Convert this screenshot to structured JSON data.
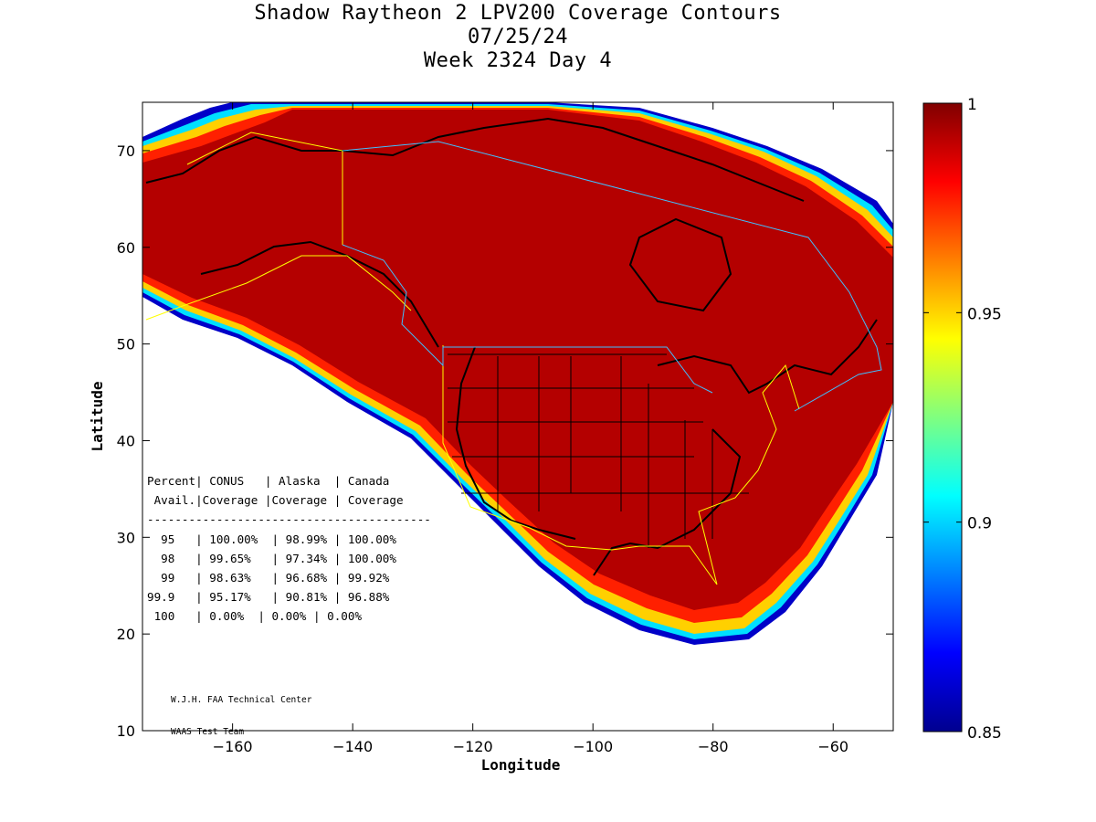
{
  "titles": [
    "Shadow Raytheon 2 LPV200 Coverage Contours",
    "07/25/24",
    "Week 2324 Day 4"
  ],
  "chart_data": {
    "type": "heatmap",
    "title": "Shadow Raytheon 2 LPV200 Coverage Contours",
    "xlabel": "Longitude",
    "ylabel": "Latitude",
    "xlim": [
      -175,
      -50
    ],
    "ylim": [
      10,
      75
    ],
    "xticks": [
      -160,
      -140,
      -120,
      -100,
      -80,
      -60
    ],
    "yticks": [
      10,
      20,
      30,
      40,
      50,
      60,
      70
    ],
    "colorbar": {
      "min": 0.85,
      "max": 1,
      "ticks": [
        "0.85",
        "0.9",
        "0.95",
        "1"
      ],
      "colormap": "jet"
    },
    "coverage_table": {
      "header1": [
        "Percent",
        "CONUS",
        "Alaska",
        "Canada"
      ],
      "header2": [
        "Avail.",
        "Coverage",
        "Coverage",
        "Coverage"
      ],
      "rows": [
        [
          "95",
          "100.00%",
          "98.99%",
          "100.00%"
        ],
        [
          "98",
          "99.65%",
          "97.34%",
          "100.00%"
        ],
        [
          "99",
          "98.63%",
          "96.68%",
          "99.92%"
        ],
        [
          "99.9",
          "95.17%",
          "90.81%",
          "96.88%"
        ],
        [
          "100",
          "0.00%",
          "0.00%",
          "0.00%"
        ]
      ]
    }
  },
  "table_lines": [
    "Percent| CONUS   | Alaska  | Canada",
    " Avail.|Coverage |Coverage | Coverage",
    "-----------------------------------------",
    "  95   | 100.00%  | 98.99% | 100.00%",
    "  98   | 99.65%   | 97.34% | 100.00%",
    "  99   | 98.63%   | 96.68% | 99.92%",
    "99.9   | 95.17%   | 90.81% | 96.88%",
    " 100   | 0.00%  | 0.00% | 0.00%"
  ],
  "credit": [
    "W.J.H. FAA Technical Center",
    "WAAS Test Team"
  ]
}
